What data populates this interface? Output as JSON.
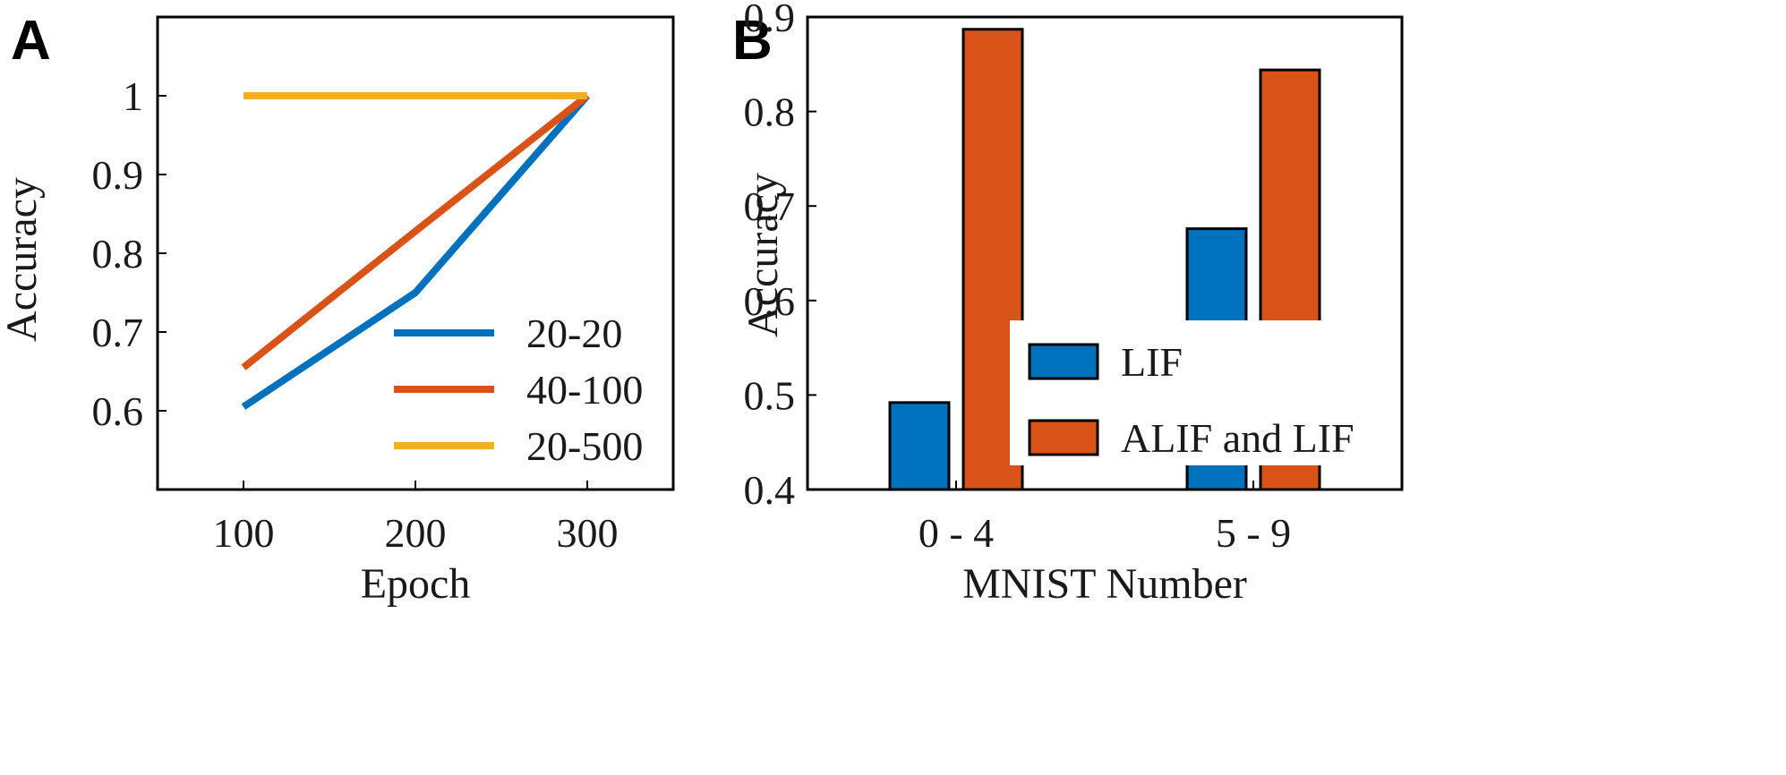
{
  "chart_data": [
    {
      "panel": "A",
      "type": "line",
      "xlabel": "Epoch",
      "ylabel": "Accuracy",
      "x": [
        100,
        200,
        300
      ],
      "xticks": [
        "100",
        "200",
        "300"
      ],
      "yticks": [
        "0.6",
        "0.7",
        "0.8",
        "0.9",
        "1"
      ],
      "xlim": [
        50,
        350
      ],
      "ylim": [
        0.5,
        1.1
      ],
      "legend_position": "lower-right",
      "series": [
        {
          "name": "20-20",
          "color": "#0072BD",
          "values": [
            0.605,
            0.75,
            1.0
          ]
        },
        {
          "name": "40-100",
          "color": "#D95319",
          "values": [
            0.655,
            0.828,
            1.0
          ]
        },
        {
          "name": "20-500",
          "color": "#EDB120",
          "values": [
            1.0,
            1.0,
            1.0
          ]
        }
      ]
    },
    {
      "panel": "B",
      "type": "bar",
      "xlabel": "MNIST Number",
      "ylabel": "Accuracy",
      "categories": [
        "0 - 4",
        "5 - 9"
      ],
      "yticks": [
        "0.4",
        "0.5",
        "0.6",
        "0.7",
        "0.8",
        "0.9"
      ],
      "ylim": [
        0.4,
        0.9
      ],
      "legend_position": "center-right",
      "series": [
        {
          "name": "LIF",
          "color": "#0072BD",
          "values": [
            0.492,
            0.676
          ]
        },
        {
          "name": "ALIF and LIF",
          "color": "#D95319",
          "values": [
            0.887,
            0.844
          ]
        }
      ]
    }
  ]
}
